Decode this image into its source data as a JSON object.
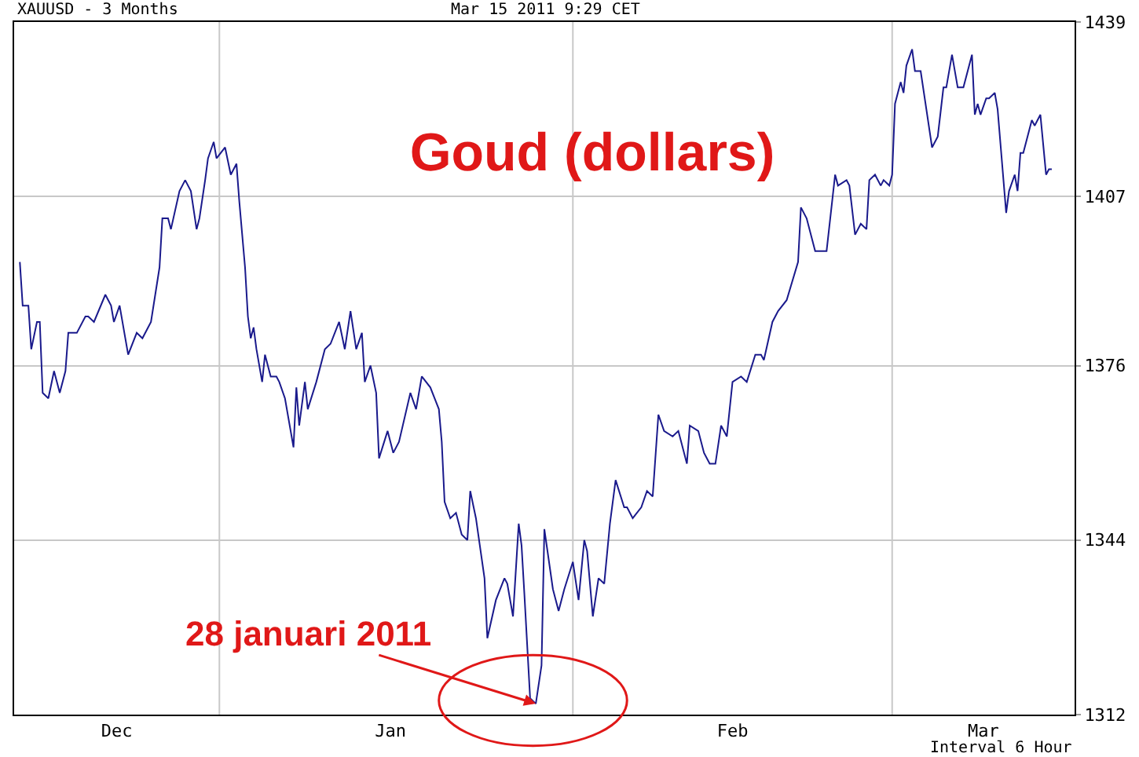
{
  "chart_data": {
    "type": "line",
    "title": "Goud (dollars)",
    "annotations": [
      "XAUUSD - 3 Months",
      "Mar 15 2011 9:29 CET",
      "Interval 6 Hour",
      {
        "text": "28 januari 2011",
        "x": "2011-01-28T18:00",
        "y": 1314
      }
    ],
    "x": [
      "2010-12-14T12:00",
      "2010-12-14T18:00",
      "2010-12-15T06:00",
      "2010-12-15T12:00",
      "2010-12-16T00:00",
      "2010-12-16T06:00",
      "2010-12-16T12:00",
      "2010-12-17T00:00",
      "2010-12-17T12:00",
      "2010-12-18T00:00",
      "2010-12-18T12:00",
      "2010-12-18T18:00",
      "2010-12-19T12:00",
      "2010-12-20T06:00",
      "2010-12-20T12:00",
      "2010-12-21T00:00",
      "2010-12-22T00:00",
      "2010-12-22T12:00",
      "2010-12-22T18:00",
      "2010-12-23T06:00",
      "2010-12-23T18:00",
      "2010-12-24T00:00",
      "2010-12-24T18:00",
      "2010-12-25T06:00",
      "2010-12-26T00:00",
      "2010-12-26T18:00",
      "2010-12-27T00:00",
      "2010-12-27T12:00",
      "2010-12-27T18:00",
      "2010-12-28T12:00",
      "2010-12-29T00:00",
      "2010-12-29T12:00",
      "2010-12-30T00:00",
      "2010-12-30T06:00",
      "2010-12-30T18:00",
      "2010-12-31T00:00",
      "2010-12-31T12:00",
      "2010-12-31T18:00",
      "2011-01-01T12:00",
      "2011-01-02T00:00",
      "2011-01-02T12:00",
      "2011-01-02T18:00",
      "2011-01-03T06:00",
      "2011-01-03T12:00",
      "2011-01-03T18:00",
      "2011-01-04T00:00",
      "2011-01-04T06:00",
      "2011-01-04T18:00",
      "2011-01-05T00:00",
      "2011-01-05T12:00",
      "2011-01-06T00:00",
      "2011-01-06T06:00",
      "2011-01-06T18:00",
      "2011-01-07T12:00",
      "2011-01-07T18:00",
      "2011-01-08T00:00",
      "2011-01-08T12:00",
      "2011-01-08T18:00",
      "2011-01-09T12:00",
      "2011-01-10T06:00",
      "2011-01-10T18:00",
      "2011-01-11T12:00",
      "2011-01-12T00:00",
      "2011-01-12T12:00",
      "2011-01-13T00:00",
      "2011-01-13T12:00",
      "2011-01-13T18:00",
      "2011-01-14T06:00",
      "2011-01-14T18:00",
      "2011-01-15T00:00",
      "2011-01-15T18:00",
      "2011-01-16T06:00",
      "2011-01-16T18:00",
      "2011-01-17T18:00",
      "2011-01-18T06:00",
      "2011-01-18T18:00",
      "2011-01-19T12:00",
      "2011-01-20T06:00",
      "2011-01-20T12:00",
      "2011-01-20T18:00",
      "2011-01-21T06:00",
      "2011-01-21T18:00",
      "2011-01-22T06:00",
      "2011-01-22T18:00",
      "2011-01-23T00:00",
      "2011-01-23T12:00",
      "2011-01-24T06:00",
      "2011-01-24T12:00",
      "2011-01-25T06:00",
      "2011-01-26T00:00",
      "2011-01-26T06:00",
      "2011-01-26T18:00",
      "2011-01-27T06:00",
      "2011-01-27T12:00",
      "2011-01-27T18:00",
      "2011-01-28T06:00",
      "2011-01-28T18:00",
      "2011-01-29T06:00",
      "2011-01-29T12:00",
      "2011-01-30T06:00",
      "2011-01-30T18:00",
      "2011-01-31T06:00",
      "2011-02-01T00:00",
      "2011-02-01T12:00",
      "2011-02-02T00:00",
      "2011-02-02T06:00",
      "2011-02-02T18:00",
      "2011-02-03T06:00",
      "2011-02-03T18:00",
      "2011-02-04T06:00",
      "2011-02-04T18:00",
      "2011-02-05T12:00",
      "2011-02-05T18:00",
      "2011-02-06T06:00",
      "2011-02-07T00:00",
      "2011-02-07T12:00",
      "2011-02-08T00:00",
      "2011-02-08T12:00",
      "2011-02-09T00:00",
      "2011-02-09T18:00",
      "2011-02-10T06:00",
      "2011-02-11T00:00",
      "2011-02-11T06:00",
      "2011-02-12T00:00",
      "2011-02-12T12:00",
      "2011-02-13T00:00",
      "2011-02-13T12:00",
      "2011-02-14T00:00",
      "2011-02-14T12:00",
      "2011-02-15T00:00",
      "2011-02-15T18:00",
      "2011-02-16T06:00",
      "2011-02-17T00:00",
      "2011-02-17T12:00",
      "2011-02-17T18:00",
      "2011-02-18T12:00",
      "2011-02-19T00:00",
      "2011-02-19T18:00",
      "2011-02-20T18:00",
      "2011-02-21T00:00",
      "2011-02-21T12:00",
      "2011-02-22T06:00",
      "2011-02-22T18:00",
      "2011-02-23T06:00",
      "2011-02-24T00:00",
      "2011-02-24T06:00",
      "2011-02-25T00:00",
      "2011-02-25T06:00",
      "2011-02-25T18:00",
      "2011-02-26T06:00",
      "2011-02-26T18:00",
      "2011-02-27T00:00",
      "2011-02-27T12:00",
      "2011-02-28T00:00",
      "2011-02-28T06:00",
      "2011-02-28T18:00",
      "2011-03-01T00:00",
      "2011-03-01T06:00",
      "2011-03-01T18:00",
      "2011-03-02T00:00",
      "2011-03-02T06:00",
      "2011-03-02T18:00",
      "2011-03-03T00:00",
      "2011-03-03T12:00",
      "2011-03-04T00:00",
      "2011-03-04T12:00",
      "2011-03-05T00:00",
      "2011-03-05T12:00",
      "2011-03-05T18:00",
      "2011-03-06T06:00",
      "2011-03-06T18:00",
      "2011-03-07T06:00",
      "2011-03-08T00:00",
      "2011-03-08T06:00",
      "2011-03-08T12:00",
      "2011-03-08T18:00",
      "2011-03-09T06:00",
      "2011-03-09T12:00",
      "2011-03-10T00:00",
      "2011-03-10T06:00",
      "2011-03-11T00:00",
      "2011-03-11T06:00",
      "2011-03-11T18:00",
      "2011-03-12T00:00",
      "2011-03-12T06:00",
      "2011-03-12T12:00",
      "2011-03-13T06:00",
      "2011-03-13T12:00",
      "2011-03-14T00:00",
      "2011-03-14T12:00",
      "2011-03-14T18:00",
      "2011-03-15T00:00"
    ],
    "series": [
      {
        "color": "#1a1a8c",
        "values": [
          1395,
          1387,
          1387,
          1379,
          1384,
          1384,
          1371,
          1370,
          1375,
          1371,
          1375,
          1382,
          1382,
          1385,
          1385,
          1384,
          1389,
          1387,
          1384,
          1387,
          1381,
          1378,
          1382,
          1381,
          1384,
          1394,
          1403,
          1403,
          1401,
          1408,
          1410,
          1408,
          1401,
          1403,
          1410,
          1414,
          1417,
          1414,
          1416,
          1411,
          1413,
          1406,
          1394,
          1385,
          1381,
          1383,
          1379,
          1373,
          1378,
          1374,
          1374,
          1373,
          1370,
          1361,
          1372,
          1365,
          1373,
          1368,
          1373,
          1379,
          1380,
          1384,
          1379,
          1386,
          1379,
          1382,
          1373,
          1376,
          1371,
          1359,
          1364,
          1360,
          1362,
          1371,
          1368,
          1374,
          1372,
          1368,
          1362,
          1351,
          1348,
          1349,
          1345,
          1344,
          1353,
          1348,
          1337,
          1326,
          1333,
          1337,
          1336,
          1330,
          1347,
          1343,
          1334,
          1315,
          1314,
          1321,
          1346,
          1335,
          1331,
          1335,
          1340,
          1333,
          1344,
          1342,
          1330,
          1337,
          1336,
          1347,
          1355,
          1350,
          1350,
          1348,
          1350,
          1353,
          1352,
          1367,
          1364,
          1363,
          1364,
          1358,
          1365,
          1364,
          1360,
          1358,
          1358,
          1365,
          1363,
          1373,
          1374,
          1373,
          1378,
          1378,
          1377,
          1384,
          1386,
          1388,
          1395,
          1405,
          1403,
          1397,
          1397,
          1397,
          1411,
          1409,
          1410,
          1409,
          1400,
          1402,
          1401,
          1410,
          1411,
          1409,
          1410,
          1409,
          1411,
          1424,
          1428,
          1426,
          1431,
          1434,
          1430,
          1430,
          1423,
          1416,
          1418,
          1427,
          1427,
          1433,
          1427,
          1427,
          1433,
          1422,
          1424,
          1422,
          1425,
          1425,
          1426,
          1423,
          1404,
          1408,
          1411,
          1408,
          1415,
          1415,
          1421,
          1420,
          1422,
          1411,
          1412,
          1412
        ]
      }
    ],
    "xlim": [
      "2010-12-14",
      "2011-03-17"
    ],
    "xticks": [
      {
        "value": "2010-12-23",
        "label": "Dec"
      },
      {
        "value": "2011-01-16",
        "label": "Jan"
      },
      {
        "value": "2011-02-15",
        "label": "Feb"
      },
      {
        "value": "2011-03-09",
        "label": "Mar"
      }
    ],
    "ylim": [
      1312,
      1439
    ],
    "yticks": [
      1312,
      1344,
      1376,
      1407,
      1439
    ],
    "ref_lines": [
      {
        "axis": "x",
        "value": "2011-01-01",
        "color": "#c8c8c8"
      },
      {
        "axis": "x",
        "value": "2011-02-01",
        "color": "#c8c8c8"
      },
      {
        "axis": "x",
        "value": "2011-03-01",
        "color": "#c8c8c8"
      }
    ],
    "grid": "y",
    "marker": "none",
    "line_style": "solid"
  }
}
